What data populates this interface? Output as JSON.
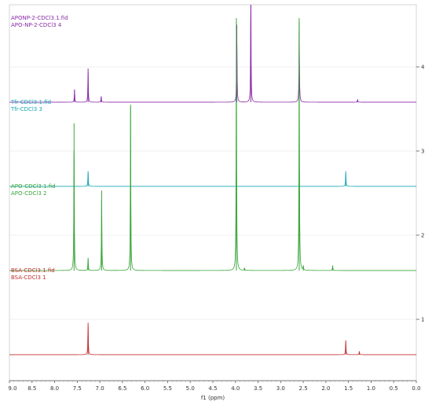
{
  "chart_data": {
    "type": "line",
    "title": "",
    "xlabel": "f1 (ppm)",
    "ylabel": "",
    "xlim": [
      9.0,
      0.0
    ],
    "x_ticks": [
      "9.0",
      "8.5",
      "8.0",
      "7.5",
      "7.0",
      "6.5",
      "6.0",
      "5.5",
      "5.0",
      "4.5",
      "4.0",
      "3.5",
      "3.0",
      "2.5",
      "2.0",
      "1.5",
      "1.0",
      "0.5",
      "0.0"
    ],
    "y_ticks": [
      "4",
      "3",
      "2",
      "1"
    ],
    "grid": true,
    "spectra": [
      {
        "name": "APONP-2-CDCl3.1.fid",
        "subname": "APO-NP-2-CDCl3 4",
        "color": "#8a2aa8",
        "offset": 3.58,
        "peaks": [
          {
            "x": 7.56,
            "h": 0.15
          },
          {
            "x": 7.26,
            "h": 0.4
          },
          {
            "x": 6.97,
            "h": 0.07
          },
          {
            "x": 3.97,
            "h": 0.92
          },
          {
            "x": 3.66,
            "h": 1.35
          },
          {
            "x": 2.59,
            "h": 0.95
          },
          {
            "x": 1.3,
            "h": 0.03
          }
        ]
      },
      {
        "name": "Tfr-CDCl3.1.fid",
        "subname": "Tfr-CDCl3 3",
        "color": "#1aa6b5",
        "offset": 2.58,
        "peaks": [
          {
            "x": 7.26,
            "h": 0.18
          },
          {
            "x": 1.56,
            "h": 0.18
          }
        ]
      },
      {
        "name": "APO-CDCl3.1.fid",
        "subname": "APO-CDCl3 2",
        "color": "#3aa63a",
        "offset": 1.58,
        "peaks": [
          {
            "x": 7.57,
            "h": 1.75
          },
          {
            "x": 7.26,
            "h": 0.15
          },
          {
            "x": 6.96,
            "h": 0.95
          },
          {
            "x": 6.32,
            "h": 1.97
          },
          {
            "x": 3.98,
            "h": 3.0
          },
          {
            "x": 2.59,
            "h": 3.0
          },
          {
            "x": 1.85,
            "h": 0.06
          },
          {
            "x": 3.8,
            "h": 0.03
          },
          {
            "x": 2.5,
            "h": 0.05
          }
        ]
      },
      {
        "name": "BSA-CDCl3.1.fid",
        "subname": "BSA-CDCl3 1",
        "color": "#c03030",
        "offset": 0.58,
        "peaks": [
          {
            "x": 7.26,
            "h": 0.38
          },
          {
            "x": 1.56,
            "h": 0.17
          },
          {
            "x": 1.26,
            "h": 0.04
          }
        ]
      }
    ]
  }
}
